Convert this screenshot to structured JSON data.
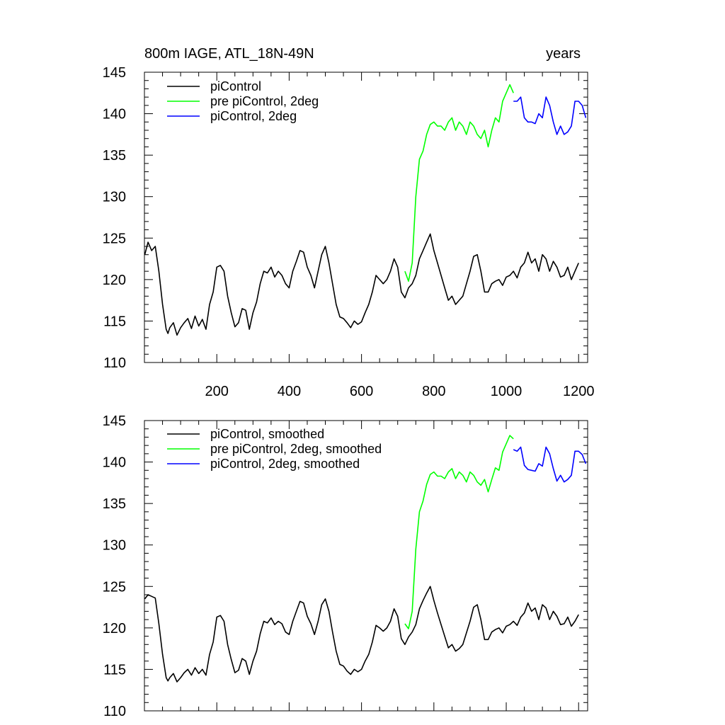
{
  "chart_data": [
    {
      "type": "line",
      "title": "800m IAGE, ATL_18N-49N",
      "right_title": "years",
      "xlim": [
        0,
        1225
      ],
      "ylim": [
        110,
        145
      ],
      "yticks": [
        110,
        115,
        120,
        125,
        130,
        135,
        140,
        145
      ],
      "xticks": [
        200,
        400,
        600,
        800,
        1000,
        1200
      ],
      "legend_position": "top-left",
      "series": [
        {
          "name": "piControl",
          "color": "#000000",
          "x": [
            1,
            10,
            20,
            30,
            40,
            50,
            60,
            65,
            70,
            80,
            90,
            100,
            110,
            120,
            130,
            140,
            150,
            160,
            170,
            180,
            190,
            200,
            210,
            220,
            230,
            240,
            250,
            260,
            270,
            280,
            290,
            300,
            310,
            320,
            330,
            340,
            350,
            360,
            370,
            380,
            390,
            400,
            410,
            420,
            430,
            440,
            450,
            460,
            470,
            480,
            490,
            500,
            510,
            520,
            530,
            540,
            550,
            560,
            570,
            580,
            590,
            600,
            610,
            620,
            630,
            640,
            650,
            660,
            670,
            680,
            690,
            700,
            710,
            720,
            730,
            740,
            750,
            760,
            770,
            780,
            790,
            800,
            810,
            820,
            830,
            840,
            850,
            860,
            870,
            880,
            890,
            900,
            910,
            920,
            930,
            940,
            950,
            960,
            970,
            980,
            990,
            1000,
            1010,
            1020,
            1030,
            1040,
            1050,
            1060,
            1070,
            1080,
            1090,
            1100,
            1110,
            1120,
            1130,
            1140,
            1150,
            1160,
            1170,
            1180,
            1190,
            1200
          ],
          "values": [
            123.0,
            124.5,
            123.5,
            124.0,
            121.0,
            117.0,
            114.0,
            113.5,
            114.2,
            114.8,
            113.3,
            114.2,
            114.8,
            115.3,
            114.1,
            115.6,
            114.4,
            115.2,
            114.0,
            117.0,
            118.5,
            121.5,
            121.7,
            121.0,
            118.0,
            116.0,
            114.3,
            114.8,
            116.5,
            116.3,
            114.0,
            116.0,
            117.3,
            119.5,
            121.0,
            120.8,
            121.5,
            120.3,
            121.0,
            120.5,
            119.5,
            119.0,
            121.0,
            122.2,
            123.5,
            123.3,
            121.5,
            120.5,
            119.0,
            121.0,
            123.0,
            124.0,
            122.0,
            119.5,
            117.0,
            115.5,
            115.3,
            114.8,
            114.2,
            115.0,
            114.6,
            114.9,
            116.0,
            117.0,
            118.5,
            120.5,
            120.0,
            119.5,
            120.0,
            121.0,
            122.5,
            121.5,
            118.5,
            117.8,
            119.0,
            119.5,
            120.5,
            122.5,
            123.5,
            124.5,
            125.5,
            123.5,
            122.0,
            120.5,
            119.0,
            117.5,
            118.0,
            117.0,
            117.5,
            118.0,
            119.5,
            121.0,
            122.8,
            123.0,
            121.0,
            118.5,
            118.5,
            119.5,
            119.8,
            120.0,
            119.3,
            120.3,
            120.5,
            121.0,
            120.2,
            121.5,
            122.0,
            123.3,
            122.0,
            122.5,
            121.0,
            123.0,
            122.5,
            121.0,
            122.2,
            121.5,
            120.3,
            120.5,
            121.5,
            120.0,
            121.0,
            122.0
          ]
        },
        {
          "name": "pre piControl, 2deg",
          "color": "#00ff00",
          "x": [
            720,
            730,
            740,
            750,
            760,
            770,
            780,
            790,
            800,
            810,
            820,
            830,
            840,
            850,
            860,
            870,
            880,
            890,
            900,
            910,
            920,
            930,
            940,
            950,
            960,
            970,
            980,
            990,
            1000,
            1010,
            1020
          ],
          "values": [
            121.0,
            119.8,
            122.0,
            130.0,
            134.5,
            135.5,
            137.5,
            138.7,
            139.0,
            138.5,
            138.5,
            138.0,
            139.0,
            139.5,
            138.0,
            139.0,
            138.5,
            137.5,
            139.0,
            138.5,
            137.5,
            137.0,
            138.0,
            136.0,
            138.0,
            139.5,
            139.0,
            141.5,
            142.5,
            143.5,
            142.5
          ]
        },
        {
          "name": "piControl, 2deg",
          "color": "#0000ff",
          "x": [
            1020,
            1030,
            1040,
            1050,
            1060,
            1070,
            1080,
            1090,
            1100,
            1110,
            1120,
            1130,
            1140,
            1150,
            1160,
            1170,
            1180,
            1190,
            1200,
            1210,
            1220
          ],
          "values": [
            141.5,
            141.5,
            142.0,
            139.5,
            139.0,
            139.0,
            138.8,
            140.0,
            139.5,
            142.0,
            141.0,
            139.0,
            137.5,
            138.5,
            137.5,
            137.8,
            138.5,
            141.5,
            141.5,
            141.0,
            139.5
          ]
        }
      ]
    },
    {
      "type": "line",
      "title": "",
      "xlim": [
        0,
        1225
      ],
      "ylim": [
        110,
        145
      ],
      "yticks": [
        110,
        115,
        120,
        125,
        130,
        135,
        140,
        145
      ],
      "legend_position": "top-left",
      "series": [
        {
          "name": "piControl, smoothed",
          "color": "#000000",
          "x": [
            1,
            10,
            20,
            30,
            40,
            50,
            60,
            65,
            70,
            80,
            90,
            100,
            110,
            120,
            130,
            140,
            150,
            160,
            170,
            180,
            190,
            200,
            210,
            220,
            230,
            240,
            250,
            260,
            270,
            280,
            290,
            300,
            310,
            320,
            330,
            340,
            350,
            360,
            370,
            380,
            390,
            400,
            410,
            420,
            430,
            440,
            450,
            460,
            470,
            480,
            490,
            500,
            510,
            520,
            530,
            540,
            550,
            560,
            570,
            580,
            590,
            600,
            610,
            620,
            630,
            640,
            650,
            660,
            670,
            680,
            690,
            700,
            710,
            720,
            730,
            740,
            750,
            760,
            770,
            780,
            790,
            800,
            810,
            820,
            830,
            840,
            850,
            860,
            870,
            880,
            890,
            900,
            910,
            920,
            930,
            940,
            950,
            960,
            970,
            980,
            990,
            1000,
            1010,
            1020,
            1030,
            1040,
            1050,
            1060,
            1070,
            1080,
            1090,
            1100,
            1110,
            1120,
            1130,
            1140,
            1150,
            1160,
            1170,
            1180,
            1190,
            1200
          ],
          "values": [
            123.5,
            124.0,
            123.8,
            123.6,
            120.5,
            116.8,
            114.0,
            113.6,
            114.0,
            114.5,
            113.5,
            114.0,
            114.6,
            115.0,
            114.3,
            115.2,
            114.5,
            115.0,
            114.3,
            116.8,
            118.3,
            121.3,
            121.5,
            120.8,
            118.0,
            116.2,
            114.6,
            114.9,
            116.3,
            116.0,
            114.4,
            116.0,
            117.2,
            119.3,
            120.8,
            120.6,
            121.2,
            120.4,
            120.8,
            120.5,
            119.5,
            119.2,
            120.8,
            122.0,
            123.2,
            123.0,
            121.4,
            120.5,
            119.2,
            120.8,
            122.8,
            123.5,
            122.0,
            119.5,
            117.2,
            115.6,
            115.4,
            114.8,
            114.4,
            115.0,
            114.7,
            115.0,
            116.0,
            116.8,
            118.3,
            120.3,
            120.0,
            119.6,
            120.0,
            120.8,
            122.3,
            121.4,
            118.7,
            118.0,
            118.9,
            119.5,
            120.4,
            122.3,
            123.3,
            124.2,
            125.0,
            123.3,
            121.8,
            120.4,
            119.0,
            117.6,
            118.0,
            117.2,
            117.5,
            118.0,
            119.4,
            120.8,
            122.5,
            122.8,
            121.0,
            118.6,
            118.6,
            119.5,
            119.8,
            120.0,
            119.4,
            120.2,
            120.4,
            120.8,
            120.3,
            121.3,
            121.8,
            123.0,
            122.0,
            122.4,
            121.0,
            122.8,
            122.4,
            121.0,
            122.0,
            121.4,
            120.4,
            120.5,
            121.3,
            120.2,
            120.8,
            121.6
          ]
        },
        {
          "name": "pre piControl, 2deg, smoothed",
          "color": "#00ff00",
          "x": [
            720,
            730,
            740,
            750,
            760,
            770,
            780,
            790,
            800,
            810,
            820,
            830,
            840,
            850,
            860,
            870,
            880,
            890,
            900,
            910,
            920,
            930,
            940,
            950,
            960,
            970,
            980,
            990,
            1000,
            1010,
            1020
          ],
          "values": [
            120.5,
            119.9,
            122.0,
            129.5,
            134.0,
            135.3,
            137.3,
            138.5,
            138.8,
            138.3,
            138.3,
            138.0,
            138.8,
            139.2,
            138.0,
            138.8,
            138.4,
            137.6,
            138.8,
            138.4,
            137.6,
            137.2,
            137.9,
            136.4,
            137.9,
            139.3,
            139.0,
            141.2,
            142.2,
            143.2,
            142.8
          ]
        },
        {
          "name": "piControl, 2deg, smoothed",
          "color": "#0000ff",
          "x": [
            1020,
            1030,
            1040,
            1050,
            1060,
            1070,
            1080,
            1090,
            1100,
            1110,
            1120,
            1130,
            1140,
            1150,
            1160,
            1170,
            1180,
            1190,
            1200,
            1210,
            1220
          ],
          "values": [
            141.5,
            141.3,
            141.8,
            139.6,
            139.1,
            139.0,
            138.9,
            139.8,
            139.5,
            141.8,
            141.0,
            139.2,
            137.7,
            138.4,
            137.6,
            137.9,
            138.4,
            141.3,
            141.3,
            140.9,
            139.8
          ]
        }
      ]
    }
  ]
}
